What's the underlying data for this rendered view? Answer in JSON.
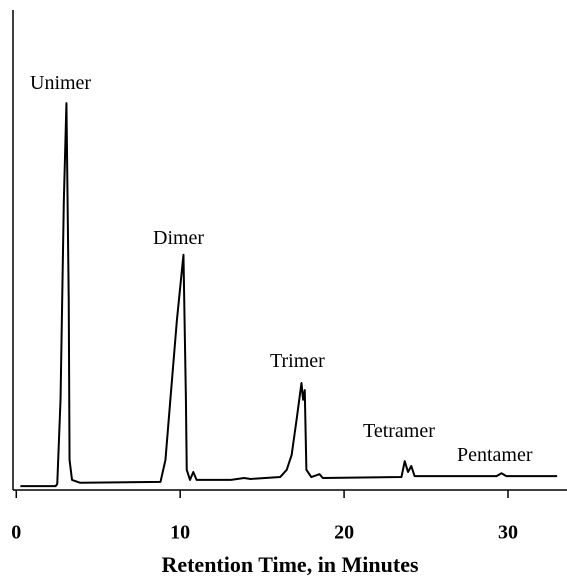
{
  "chart_data": {
    "type": "line",
    "xlabel": "Retention Time, in Minutes",
    "annotations": [
      "Unimer",
      "Dimer",
      "Trimer",
      "Tetramer",
      "Pentamer"
    ],
    "x": [
      0.25,
      2.4,
      2.5,
      2.7,
      2.9,
      3.06,
      3.2,
      3.25,
      3.4,
      3.9,
      8.8,
      9.1,
      9.4,
      9.8,
      10.2,
      10.35,
      10.4,
      10.6,
      10.8,
      11.0,
      13.1,
      13.9,
      14.3,
      16.1,
      16.5,
      16.8,
      17.1,
      17.4,
      17.5,
      17.6,
      17.7,
      18.0,
      18.5,
      18.7,
      23.5,
      23.7,
      23.9,
      24.1,
      24.3,
      29.3,
      29.6,
      29.9,
      33.0
    ],
    "values": [
      0.8,
      0.8,
      1.25,
      18.8,
      60,
      80.6,
      39.6,
      6.25,
      2.1,
      1.5,
      1.7,
      6.25,
      18.8,
      35.4,
      49,
      18.8,
      4.2,
      2.1,
      3.75,
      2.1,
      2.1,
      2.5,
      2.3,
      2.7,
      4.2,
      7.3,
      14.6,
      22.3,
      18.8,
      20.8,
      4.2,
      2.7,
      3.3,
      2.5,
      2.7,
      6,
      3.75,
      5,
      2.9,
      2.9,
      3.5,
      2.9,
      2.9
    ],
    "color": "#000000",
    "xlim": [
      -0.2,
      33.6
    ],
    "xticks": [
      0,
      10,
      20,
      30
    ],
    "ylim": [
      0,
      100
    ]
  }
}
